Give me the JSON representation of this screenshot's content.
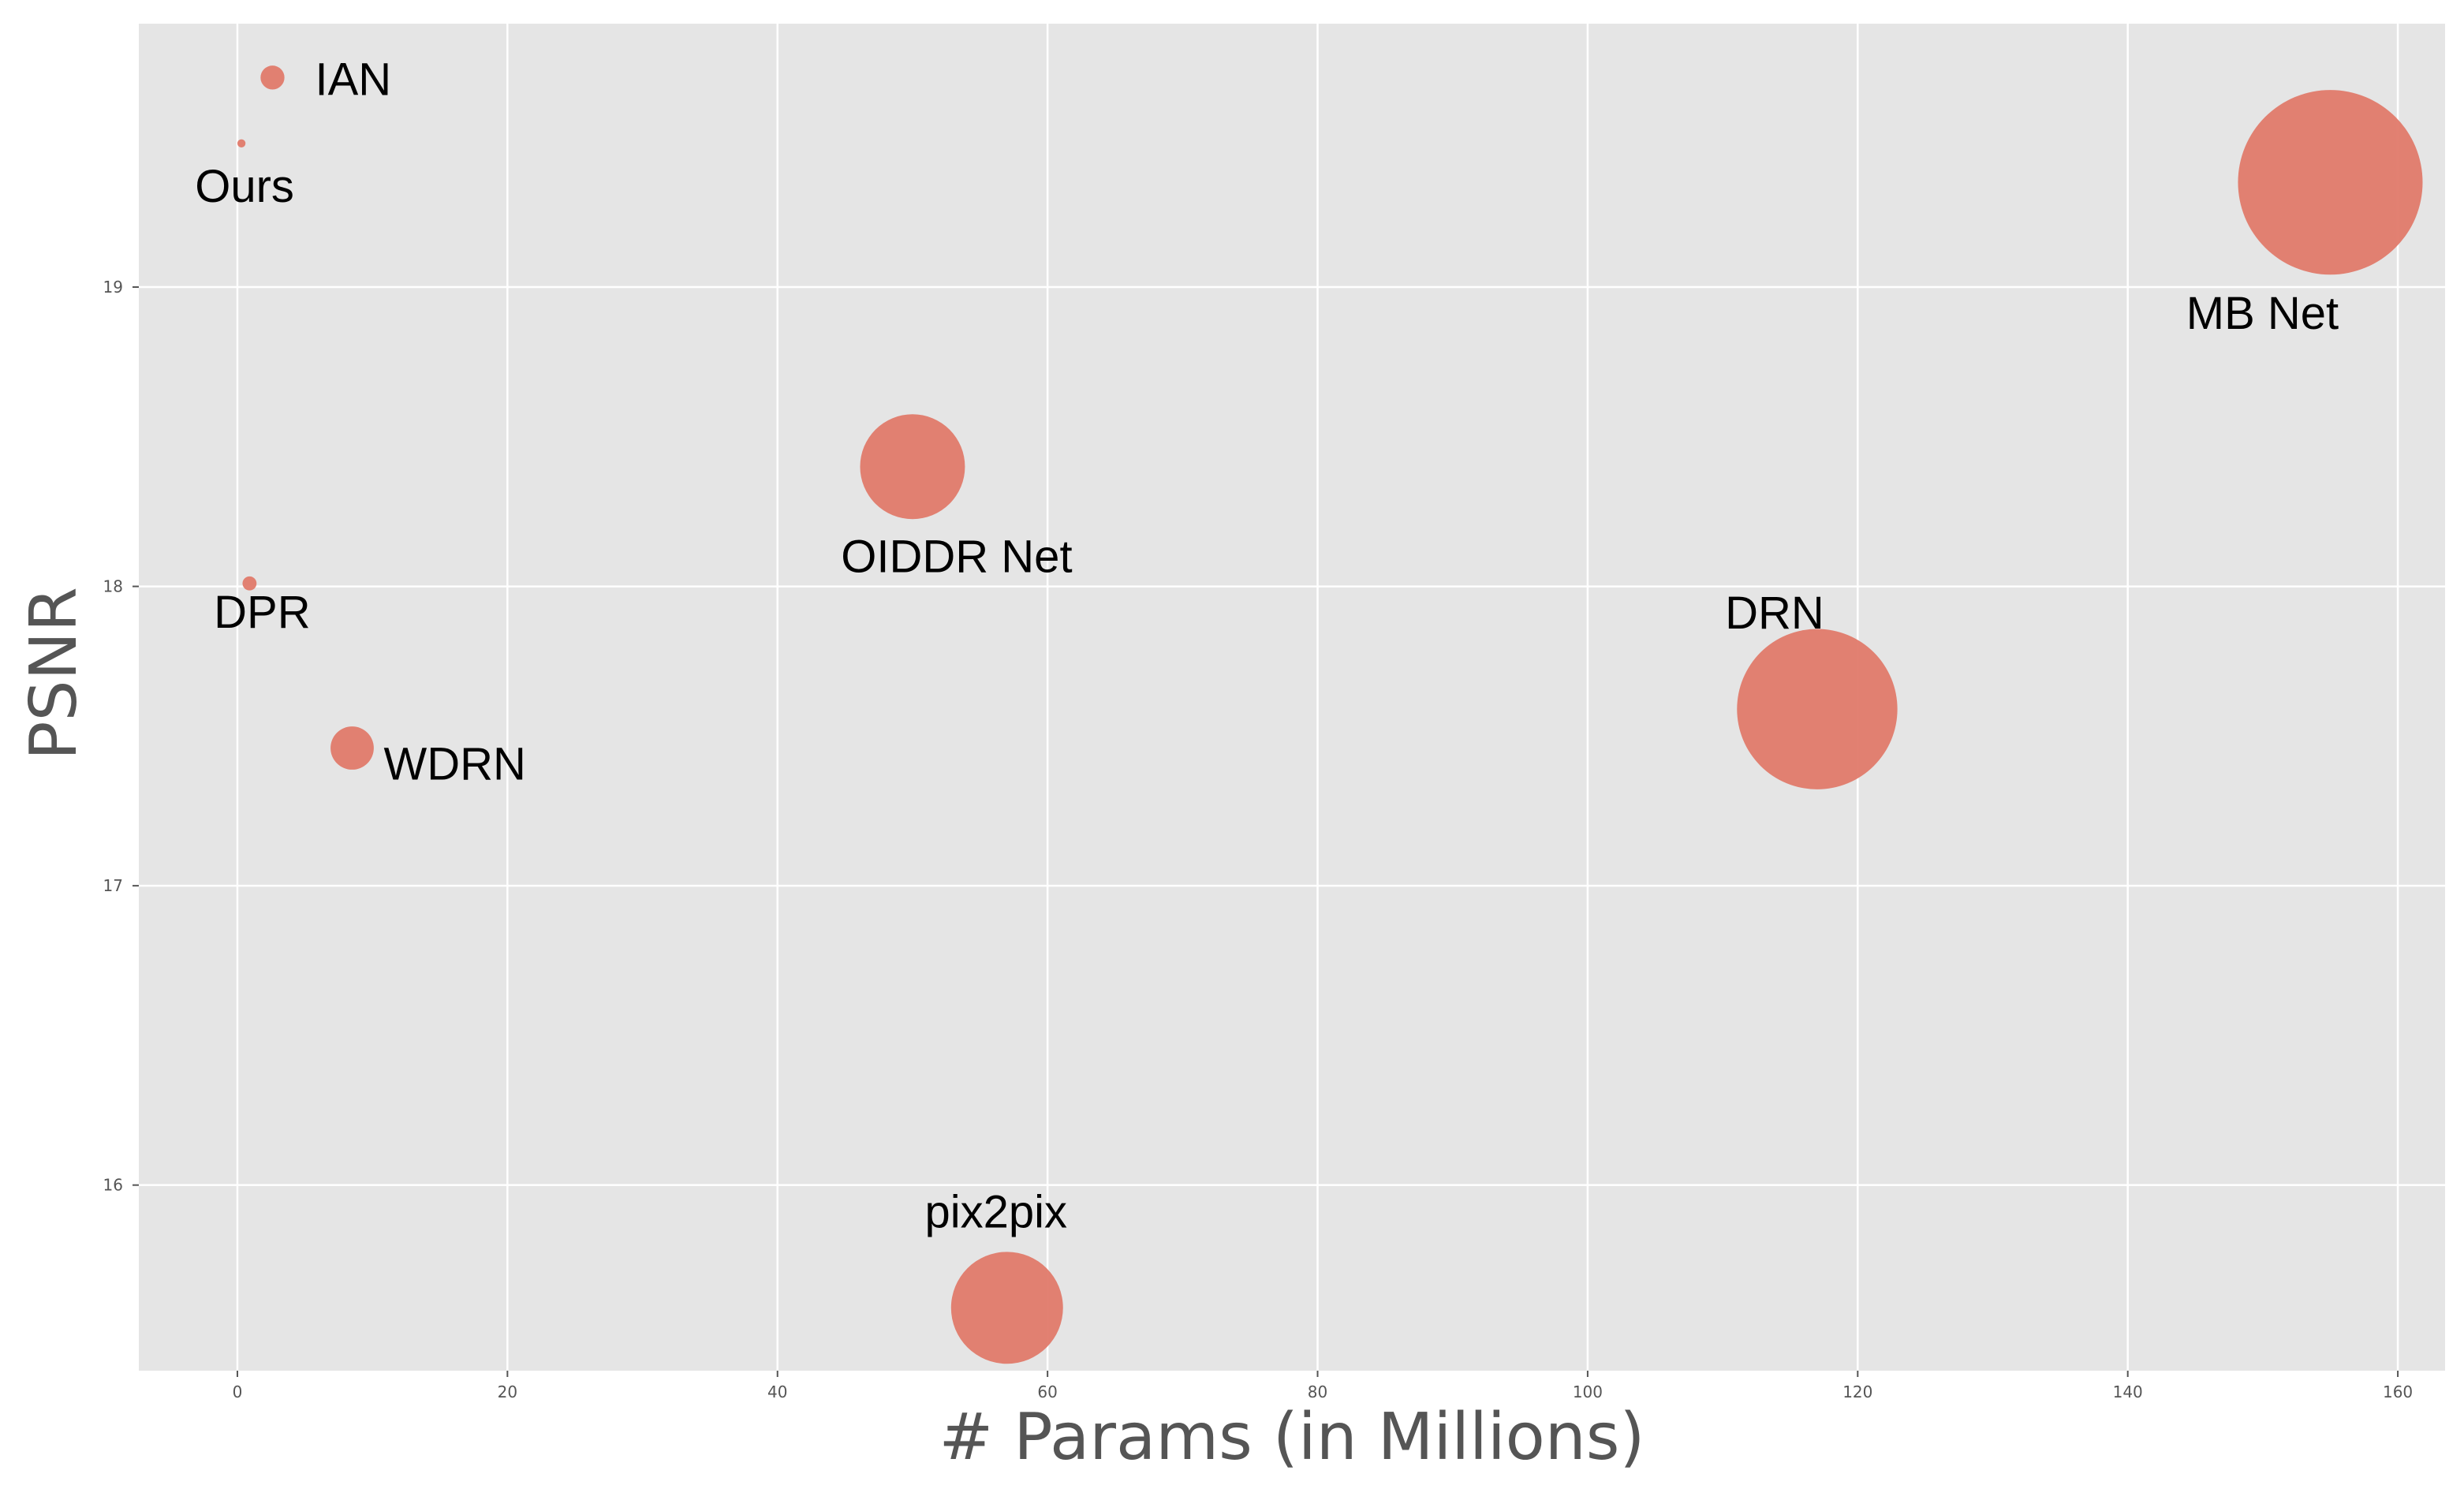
{
  "chart_data": {
    "type": "scatter",
    "title": "",
    "xlabel": "# Params (in Millions)",
    "ylabel": "PSNR",
    "xlim": [
      -7.3,
      163.5
    ],
    "ylim": [
      15.38,
      19.88
    ],
    "xticks": [
      0,
      20,
      40,
      60,
      80,
      100,
      120,
      140,
      160
    ],
    "yticks": [
      16,
      17,
      18,
      19
    ],
    "grid": true,
    "background": "#e5e5e5",
    "grid_color": "#ffffff",
    "marker_color": "#e07a6a",
    "points": [
      {
        "name": "IAN",
        "x": 2.6,
        "y": 19.7,
        "size": 2.6
      },
      {
        "name": "Ours",
        "x": 0.3,
        "y": 19.48,
        "size": 0.3
      },
      {
        "name": "DPR",
        "x": 0.9,
        "y": 18.01,
        "size": 0.9
      },
      {
        "name": "WDRN",
        "x": 8.5,
        "y": 17.46,
        "size": 8.5
      },
      {
        "name": "OIDDR Net",
        "x": 50,
        "y": 18.4,
        "size": 50
      },
      {
        "name": "pix2pix",
        "x": 57,
        "y": 15.59,
        "size": 57
      },
      {
        "name": "DRN",
        "x": 117,
        "y": 17.59,
        "size": 117
      },
      {
        "name": "MB Net",
        "x": 155,
        "y": 19.35,
        "size": 155
      }
    ]
  }
}
